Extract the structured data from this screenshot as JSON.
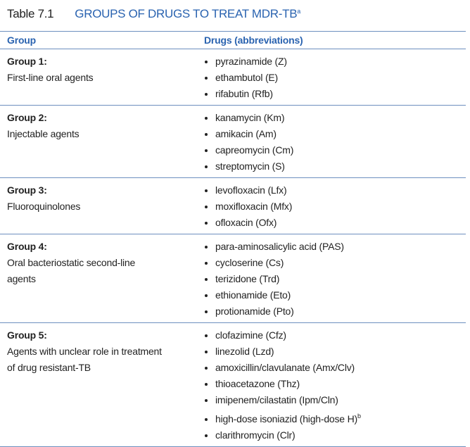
{
  "table": {
    "label": "Table 7.1",
    "title": "GROUPS OF DRUGS TO TREAT MDR-TB",
    "title_note": "a",
    "headers": [
      "Group",
      "Drugs (abbreviations)"
    ],
    "rows": [
      {
        "group": "Group 1:",
        "description": "First-line oral agents",
        "drugs": [
          "pyrazinamide (Z)",
          "ethambutol (E)",
          "rifabutin (Rfb)"
        ]
      },
      {
        "group": "Group 2:",
        "description": "Injectable agents",
        "drugs": [
          "kanamycin (Km)",
          "amikacin (Am)",
          "capreomycin (Cm)",
          "streptomycin (S)"
        ]
      },
      {
        "group": "Group 3:",
        "description": "Fluoroquinolones",
        "drugs": [
          "levofloxacin (Lfx)",
          "moxifloxacin (Mfx)",
          "ofloxacin (Ofx)"
        ]
      },
      {
        "group": "Group 4:",
        "description": "Oral bacteriostatic second-line agents",
        "drugs": [
          "para-aminosalicylic acid (PAS)",
          "cycloserine (Cs)",
          "terizidone (Trd)",
          "ethionamide (Eto)",
          "protionamide (Pto)"
        ]
      },
      {
        "group": "Group 5:",
        "description": "Agents with unclear role in treatment of drug resistant-TB",
        "drugs": [
          "clofazimine (Cfz)",
          "linezolid (Lzd)",
          "amoxicillin/clavulanate (Amx/Clv)",
          "thioacetazone (Thz)",
          "imipenem/cilastatin (Ipm/Cln)",
          {
            "text": "high-dose isoniazid (high-dose H)",
            "note": "b"
          },
          "clarithromycin (Clr)"
        ]
      }
    ]
  }
}
